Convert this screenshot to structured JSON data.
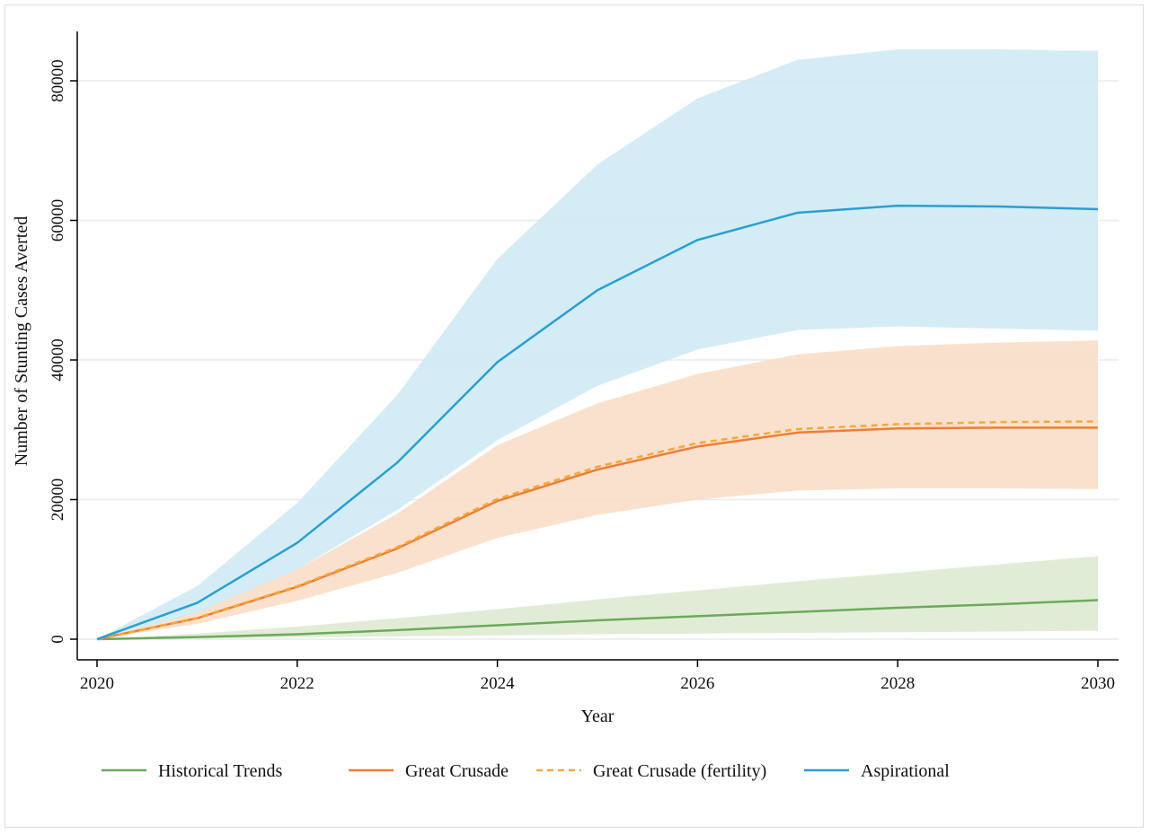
{
  "chart_data": {
    "type": "line",
    "xlabel": "Year",
    "ylabel": "Number of Stunting Cases Averted",
    "xlim": [
      2020,
      2030
    ],
    "ylim": [
      0,
      86000
    ],
    "x_ticks": [
      2020,
      2022,
      2024,
      2026,
      2028,
      2030
    ],
    "y_ticks": [
      0,
      20000,
      40000,
      60000,
      80000
    ],
    "grid": "horizontal",
    "legend_position": "bottom",
    "x": [
      2020,
      2021,
      2022,
      2023,
      2024,
      2025,
      2026,
      2027,
      2028,
      2029,
      2030
    ],
    "series": [
      {
        "name": "Historical Trends",
        "color": "#6aaa5a",
        "band_color": "#dce9d0",
        "style": "solid",
        "values": [
          0,
          300,
          700,
          1300,
          2000,
          2700,
          3300,
          3900,
          4500,
          5000,
          5600
        ],
        "lower": [
          0,
          100,
          250,
          400,
          550,
          700,
          800,
          900,
          1000,
          1100,
          1200
        ],
        "upper": [
          0,
          800,
          1800,
          3000,
          4300,
          5700,
          7000,
          8300,
          9500,
          10700,
          11900
        ]
      },
      {
        "name": "Great Crusade",
        "color": "#ef7d35",
        "band_color": "#f9dcc4",
        "style": "solid",
        "values": [
          0,
          3000,
          7500,
          13000,
          19800,
          24300,
          27600,
          29600,
          30200,
          30300,
          30300
        ],
        "lower": [
          0,
          2200,
          5500,
          9500,
          14500,
          17800,
          20000,
          21300,
          21600,
          21600,
          21500
        ],
        "upper": [
          0,
          4000,
          10000,
          18000,
          27800,
          33800,
          38000,
          40800,
          42000,
          42500,
          42800
        ]
      },
      {
        "name": "Great Crusade (fertility)",
        "color": "#f4a93a",
        "style": "dashed",
        "values": [
          0,
          3050,
          7600,
          13200,
          20100,
          24700,
          28100,
          30100,
          30800,
          31100,
          31200
        ]
      },
      {
        "name": "Aspirational",
        "color": "#2a9fd0",
        "band_color": "#cde9f4",
        "style": "solid",
        "values": [
          0,
          5200,
          13800,
          25300,
          39700,
          50000,
          57200,
          61100,
          62100,
          62000,
          61600
        ],
        "lower": [
          0,
          3800,
          10000,
          18500,
          28500,
          36300,
          41500,
          44300,
          44800,
          44500,
          44200
        ],
        "upper": [
          0,
          7600,
          19500,
          35000,
          54500,
          68000,
          77500,
          83000,
          84500,
          84500,
          84300
        ]
      }
    ]
  }
}
